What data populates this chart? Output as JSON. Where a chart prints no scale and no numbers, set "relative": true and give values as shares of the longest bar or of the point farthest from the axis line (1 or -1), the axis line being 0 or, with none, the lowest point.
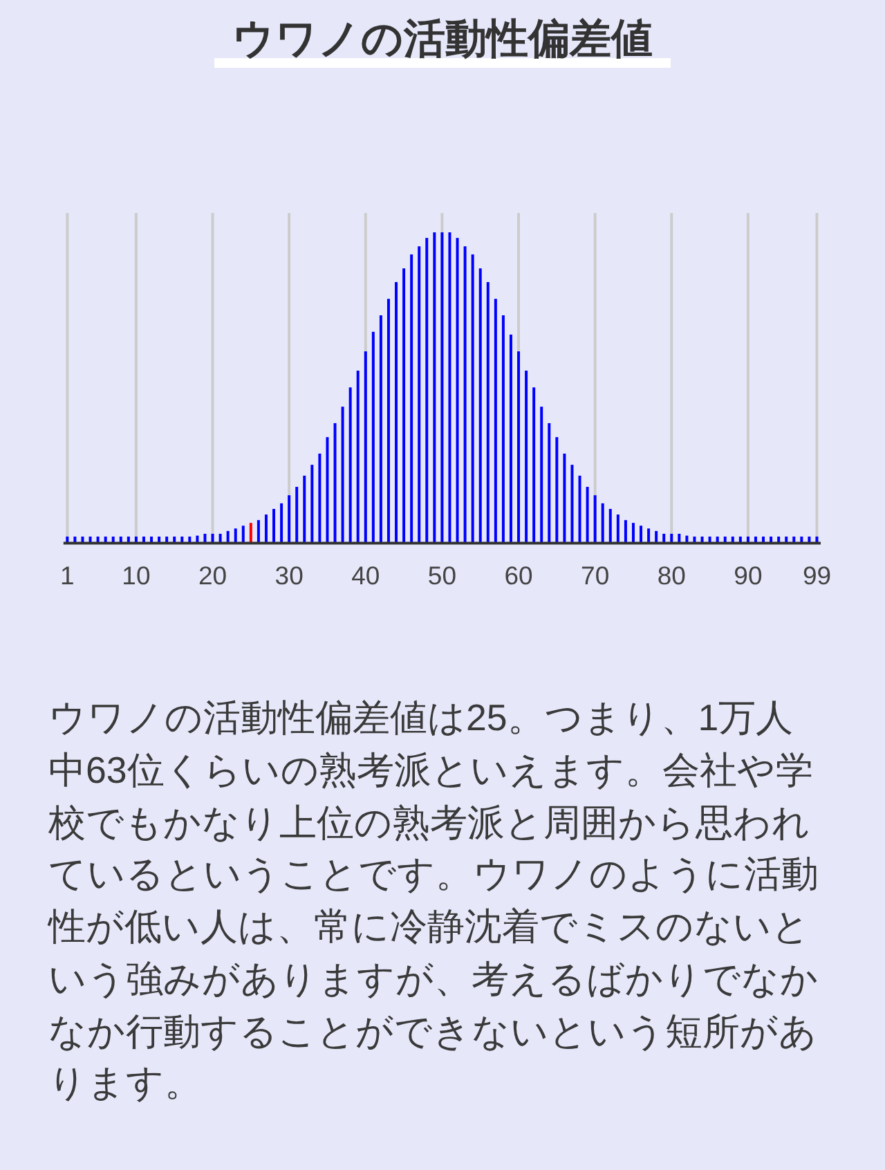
{
  "chart_data": {
    "type": "bar",
    "title": "ウワノの活動性偏差値",
    "x": [
      1,
      2,
      3,
      4,
      5,
      6,
      7,
      8,
      9,
      10,
      11,
      12,
      13,
      14,
      15,
      16,
      17,
      18,
      19,
      20,
      21,
      22,
      23,
      24,
      25,
      26,
      27,
      28,
      29,
      30,
      31,
      32,
      33,
      34,
      35,
      36,
      37,
      38,
      39,
      40,
      41,
      42,
      43,
      44,
      45,
      46,
      47,
      48,
      49,
      50,
      51,
      52,
      53,
      54,
      55,
      56,
      57,
      58,
      59,
      60,
      61,
      62,
      63,
      64,
      65,
      66,
      67,
      68,
      69,
      70,
      71,
      72,
      73,
      74,
      75,
      76,
      77,
      78,
      79,
      80,
      81,
      82,
      83,
      84,
      85,
      86,
      87,
      88,
      89,
      90,
      91,
      92,
      93,
      94,
      95,
      96,
      97,
      98,
      99
    ],
    "values": [
      0.021,
      0.021,
      0.021,
      0.021,
      0.021,
      0.021,
      0.021,
      0.021,
      0.021,
      0.021,
      0.021,
      0.021,
      0.021,
      0.021,
      0.021,
      0.021,
      0.021,
      0.024,
      0.03,
      0.03,
      0.03,
      0.039,
      0.047,
      0.056,
      0.065,
      0.074,
      0.092,
      0.11,
      0.128,
      0.154,
      0.181,
      0.217,
      0.252,
      0.288,
      0.341,
      0.386,
      0.439,
      0.501,
      0.555,
      0.617,
      0.68,
      0.733,
      0.786,
      0.84,
      0.884,
      0.929,
      0.955,
      0.982,
      1,
      1,
      1,
      0.982,
      0.955,
      0.929,
      0.884,
      0.84,
      0.786,
      0.733,
      0.671,
      0.617,
      0.555,
      0.501,
      0.439,
      0.386,
      0.341,
      0.288,
      0.252,
      0.217,
      0.181,
      0.154,
      0.128,
      0.11,
      0.092,
      0.074,
      0.065,
      0.056,
      0.047,
      0.039,
      0.03,
      0.03,
      0.03,
      0.024,
      0.021,
      0.021,
      0.021,
      0.021,
      0.021,
      0.021,
      0.021,
      0.021,
      0.021,
      0.021,
      0.021,
      0.021,
      0.021,
      0.021,
      0.021,
      0.021,
      0.021
    ],
    "colors": [
      "#0000ff",
      "#0000ff",
      "#0000ff",
      "#0000ff",
      "#0000ff",
      "#0000ff",
      "#0000ff",
      "#0000ff",
      "#0000ff",
      "#0000ff",
      "#0000ff",
      "#0000ff",
      "#0000ff",
      "#0000ff",
      "#0000ff",
      "#0000ff",
      "#0000ff",
      "#0000ff",
      "#0000ff",
      "#0000ff",
      "#0000ff",
      "#0000ff",
      "#0000ff",
      "#0000ff",
      "#ff0000",
      "#0000ff",
      "#0000ff",
      "#0000ff",
      "#0000ff",
      "#0000ff",
      "#0000ff",
      "#0000ff",
      "#0000ff",
      "#0000ff",
      "#0000ff",
      "#0000ff",
      "#0000ff",
      "#0000ff",
      "#0000ff",
      "#0000ff",
      "#0000ff",
      "#0000ff",
      "#0000ff",
      "#0000ff",
      "#0000ff",
      "#0000ff",
      "#0000ff",
      "#0000ff",
      "#0000ff",
      "#0000ff",
      "#0000ff",
      "#0000ff",
      "#0000ff",
      "#0000ff",
      "#0000ff",
      "#0000ff",
      "#0000ff",
      "#0000ff",
      "#0000ff",
      "#0000ff",
      "#0000ff",
      "#0000ff",
      "#0000ff",
      "#0000ff",
      "#0000ff",
      "#0000ff",
      "#0000ff",
      "#0000ff",
      "#0000ff",
      "#0000ff",
      "#0000ff",
      "#0000ff",
      "#0000ff",
      "#0000ff",
      "#0000ff",
      "#0000ff",
      "#0000ff",
      "#0000ff",
      "#0000ff",
      "#0000ff",
      "#0000ff",
      "#0000ff",
      "#0000ff",
      "#0000ff",
      "#0000ff",
      "#0000ff",
      "#0000ff",
      "#0000ff",
      "#0000ff",
      "#0000ff",
      "#0000ff",
      "#0000ff",
      "#0000ff",
      "#0000ff",
      "#0000ff",
      "#0000ff",
      "#0000ff",
      "#0000ff",
      "#0000ff"
    ],
    "relative": true,
    "xlim": [
      0.5,
      99.5
    ],
    "xticks": [
      1,
      10,
      20,
      30,
      40,
      50,
      60,
      70,
      80,
      90,
      99
    ],
    "grid": "x",
    "annotations": [
      "ウワノの活動性偏差値は25。つまり、1万人中63位くらいの熟考派といえます。会社や学校でもかなり上位の熟考派と周囲から思われているということです。ウワノのように活動性が低い人は、常に冷静沈着でミスのないという強みがありますが、考えるばかりでなかなか行動することができないという短所があります。"
    ]
  }
}
